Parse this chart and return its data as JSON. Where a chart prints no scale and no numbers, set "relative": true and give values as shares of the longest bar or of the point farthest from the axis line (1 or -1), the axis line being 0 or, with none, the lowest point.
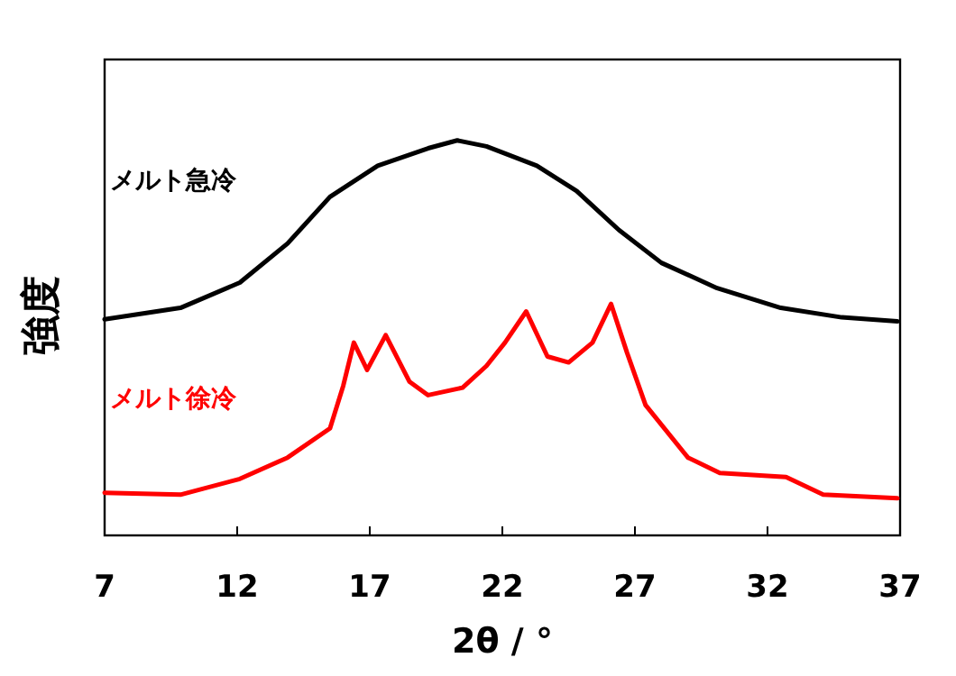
{
  "chart_data": {
    "type": "line",
    "relative": true,
    "xlabel": "2θ / °",
    "ylabel": "強度",
    "xlim": [
      7,
      37
    ],
    "xticks": [
      7,
      12,
      17,
      22,
      27,
      32,
      37
    ],
    "series": [
      {
        "name": "メルト急冷",
        "color": "#000000",
        "x": [
          7.0,
          9.86,
          12.1,
          13.9,
          15.5,
          17.3,
          19.2,
          20.3,
          21.4,
          23.3,
          24.8,
          26.4,
          28.0,
          30.1,
          32.5,
          34.8,
          36.9
        ],
        "values": [
          0.547,
          0.576,
          0.64,
          0.739,
          0.857,
          0.936,
          0.98,
          1,
          0.985,
          0.936,
          0.872,
          0.773,
          0.69,
          0.626,
          0.576,
          0.552,
          0.542
        ]
      },
      {
        "name": "メルト徐冷",
        "color": "#ff0000",
        "x": [
          7.0,
          9.86,
          12.1,
          13.9,
          15.5,
          16.0,
          16.4,
          16.9,
          17.6,
          18.5,
          19.2,
          20.5,
          21.4,
          22.1,
          22.9,
          23.7,
          24.5,
          25.4,
          26.1,
          26.7,
          27.4,
          29.0,
          30.2,
          32.7,
          34.1,
          36.9
        ],
        "values": [
          0.108,
          0.103,
          0.143,
          0.197,
          0.271,
          0.379,
          0.488,
          0.419,
          0.507,
          0.389,
          0.355,
          0.374,
          0.429,
          0.488,
          0.567,
          0.453,
          0.438,
          0.488,
          0.586,
          0.463,
          0.33,
          0.197,
          0.158,
          0.148,
          0.103,
          0.094
        ]
      }
    ]
  }
}
